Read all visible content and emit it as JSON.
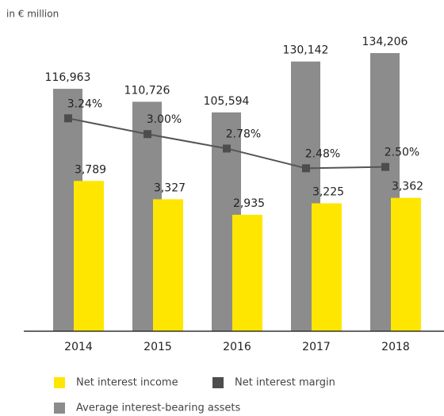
{
  "chart_data": {
    "type": "bar",
    "subtitle": "in € million",
    "categories": [
      "2014",
      "2015",
      "2016",
      "2017",
      "2018"
    ],
    "ylim": [
      0,
      156000
    ],
    "y2lim": [
      0,
      8150
    ],
    "y3lim": [
      0,
      4.92
    ],
    "series": [
      {
        "name": "Average interest-bearing assets",
        "type": "bar",
        "color": "#8c8c8c",
        "axis": "y",
        "values": [
          116963,
          110726,
          105594,
          130142,
          134206
        ],
        "value_labels": [
          "116,963",
          "110,726",
          "105,594",
          "130,142",
          "134,206"
        ]
      },
      {
        "name": "Net interest income",
        "type": "bar",
        "color": "#ffe600",
        "axis": "y2",
        "values": [
          3789,
          3327,
          2935,
          3225,
          3362
        ],
        "value_labels": [
          "3,789",
          "3,327",
          "2,935",
          "3,225",
          "3,362"
        ]
      },
      {
        "name": "Net interest margin",
        "type": "line",
        "color": "#555555",
        "axis": "y3",
        "values": [
          3.24,
          3.0,
          2.78,
          2.48,
          2.5
        ],
        "value_labels": [
          "3.24%",
          "3.00%",
          "2.78%",
          "2.48%",
          "2.50%"
        ]
      }
    ],
    "legend_order": [
      1,
      2,
      0
    ]
  }
}
